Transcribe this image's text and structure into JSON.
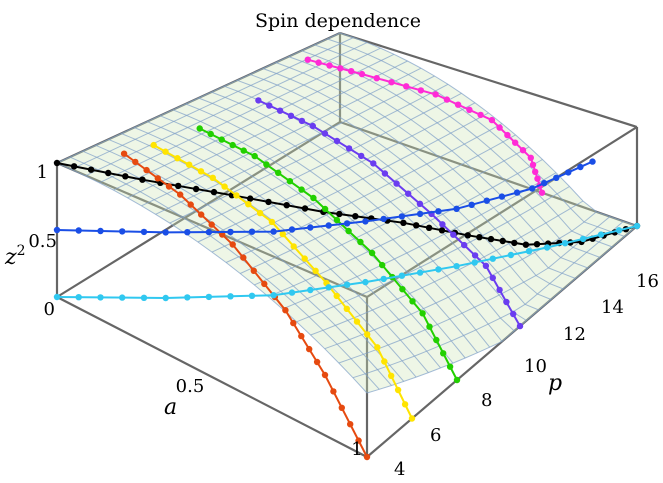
{
  "chart_data": {
    "type": "surface3d",
    "title": "Spin dependence",
    "axes": {
      "a": {
        "label": "a",
        "ticks": [
          "0.5",
          "1"
        ],
        "range": [
          0,
          1
        ]
      },
      "p": {
        "label": "p",
        "ticks": [
          "4",
          "6",
          "8",
          "10",
          "12",
          "14",
          "16"
        ],
        "range": [
          4,
          16
        ]
      },
      "z2": {
        "label": "z",
        "label_sup": "2",
        "ticks": [
          "0",
          "0.5",
          "1"
        ],
        "range": [
          0,
          1
        ]
      }
    },
    "surface": {
      "description_equation": "z^2 = 1 - (1 - a^2) boundary curve",
      "mesh_color": "#7f9fc8",
      "fill_color": "#cfe6b8"
    },
    "series": [
      {
        "color": "#000000",
        "points": [
          [
            0.0,
            4,
            1.0
          ],
          [
            0.2,
            5,
            0.99
          ],
          [
            0.4,
            6.2,
            0.96
          ],
          [
            0.6,
            7.5,
            0.9
          ],
          [
            0.75,
            9,
            0.8
          ],
          [
            0.85,
            10.5,
            0.62
          ],
          [
            0.93,
            12,
            0.42
          ],
          [
            0.98,
            13.8,
            0.22
          ],
          [
            1.0,
            16,
            0.0
          ]
        ]
      },
      {
        "color": "#ff2bd6",
        "points": [
          [
            0.05,
            14,
            1.0
          ],
          [
            0.2,
            14.4,
            0.96
          ],
          [
            0.4,
            15,
            0.88
          ],
          [
            0.55,
            15.5,
            0.7
          ],
          [
            0.65,
            15.9,
            0.35
          ],
          [
            0.68,
            16,
            0.0
          ]
        ]
      },
      {
        "color": "#e64a10",
        "points": [
          [
            0.08,
            5.8,
            1.0
          ],
          [
            0.3,
            5.3,
            0.95
          ],
          [
            0.5,
            4.9,
            0.82
          ],
          [
            0.7,
            4.5,
            0.6
          ],
          [
            0.85,
            4.2,
            0.35
          ],
          [
            1.0,
            4,
            0.0
          ]
        ]
      },
      {
        "color": "#ffe400",
        "points": [
          [
            0.1,
            6.8,
            1.0
          ],
          [
            0.3,
            6.7,
            0.95
          ],
          [
            0.5,
            6.6,
            0.82
          ],
          [
            0.7,
            6.3,
            0.6
          ],
          [
            0.88,
            6.1,
            0.35
          ],
          [
            1.0,
            6,
            0.0
          ]
        ]
      },
      {
        "color": "#22d000",
        "points": [
          [
            0.12,
            8.5,
            1.0
          ],
          [
            0.3,
            8.5,
            0.95
          ],
          [
            0.5,
            8.4,
            0.82
          ],
          [
            0.7,
            8.3,
            0.6
          ],
          [
            0.88,
            8.1,
            0.35
          ],
          [
            1.0,
            8,
            0.0
          ]
        ]
      },
      {
        "color": "#6a3df0",
        "points": [
          [
            0.12,
            11,
            1.0
          ],
          [
            0.3,
            11,
            0.95
          ],
          [
            0.5,
            11,
            0.82
          ],
          [
            0.7,
            10.9,
            0.6
          ],
          [
            0.88,
            10.9,
            0.35
          ],
          [
            1.0,
            10.8,
            0.0
          ]
        ]
      },
      {
        "color": "#1a4ee6",
        "points": [
          [
            0.0,
            4,
            0.5
          ],
          [
            0.2,
            6,
            0.5
          ],
          [
            0.4,
            8,
            0.5
          ],
          [
            0.55,
            10,
            0.5
          ],
          [
            0.7,
            12,
            0.5
          ],
          [
            0.8,
            14,
            0.5
          ],
          [
            0.85,
            16,
            0.5
          ]
        ]
      },
      {
        "color": "#30c8f0",
        "points": [
          [
            0.0,
            4,
            0.0
          ],
          [
            0.2,
            6,
            0.0
          ],
          [
            0.4,
            8,
            0.0
          ],
          [
            0.55,
            10,
            0.0
          ],
          [
            0.7,
            12,
            0.0
          ],
          [
            0.85,
            14,
            0.0
          ],
          [
            1.0,
            16,
            0.0
          ]
        ]
      }
    ]
  }
}
